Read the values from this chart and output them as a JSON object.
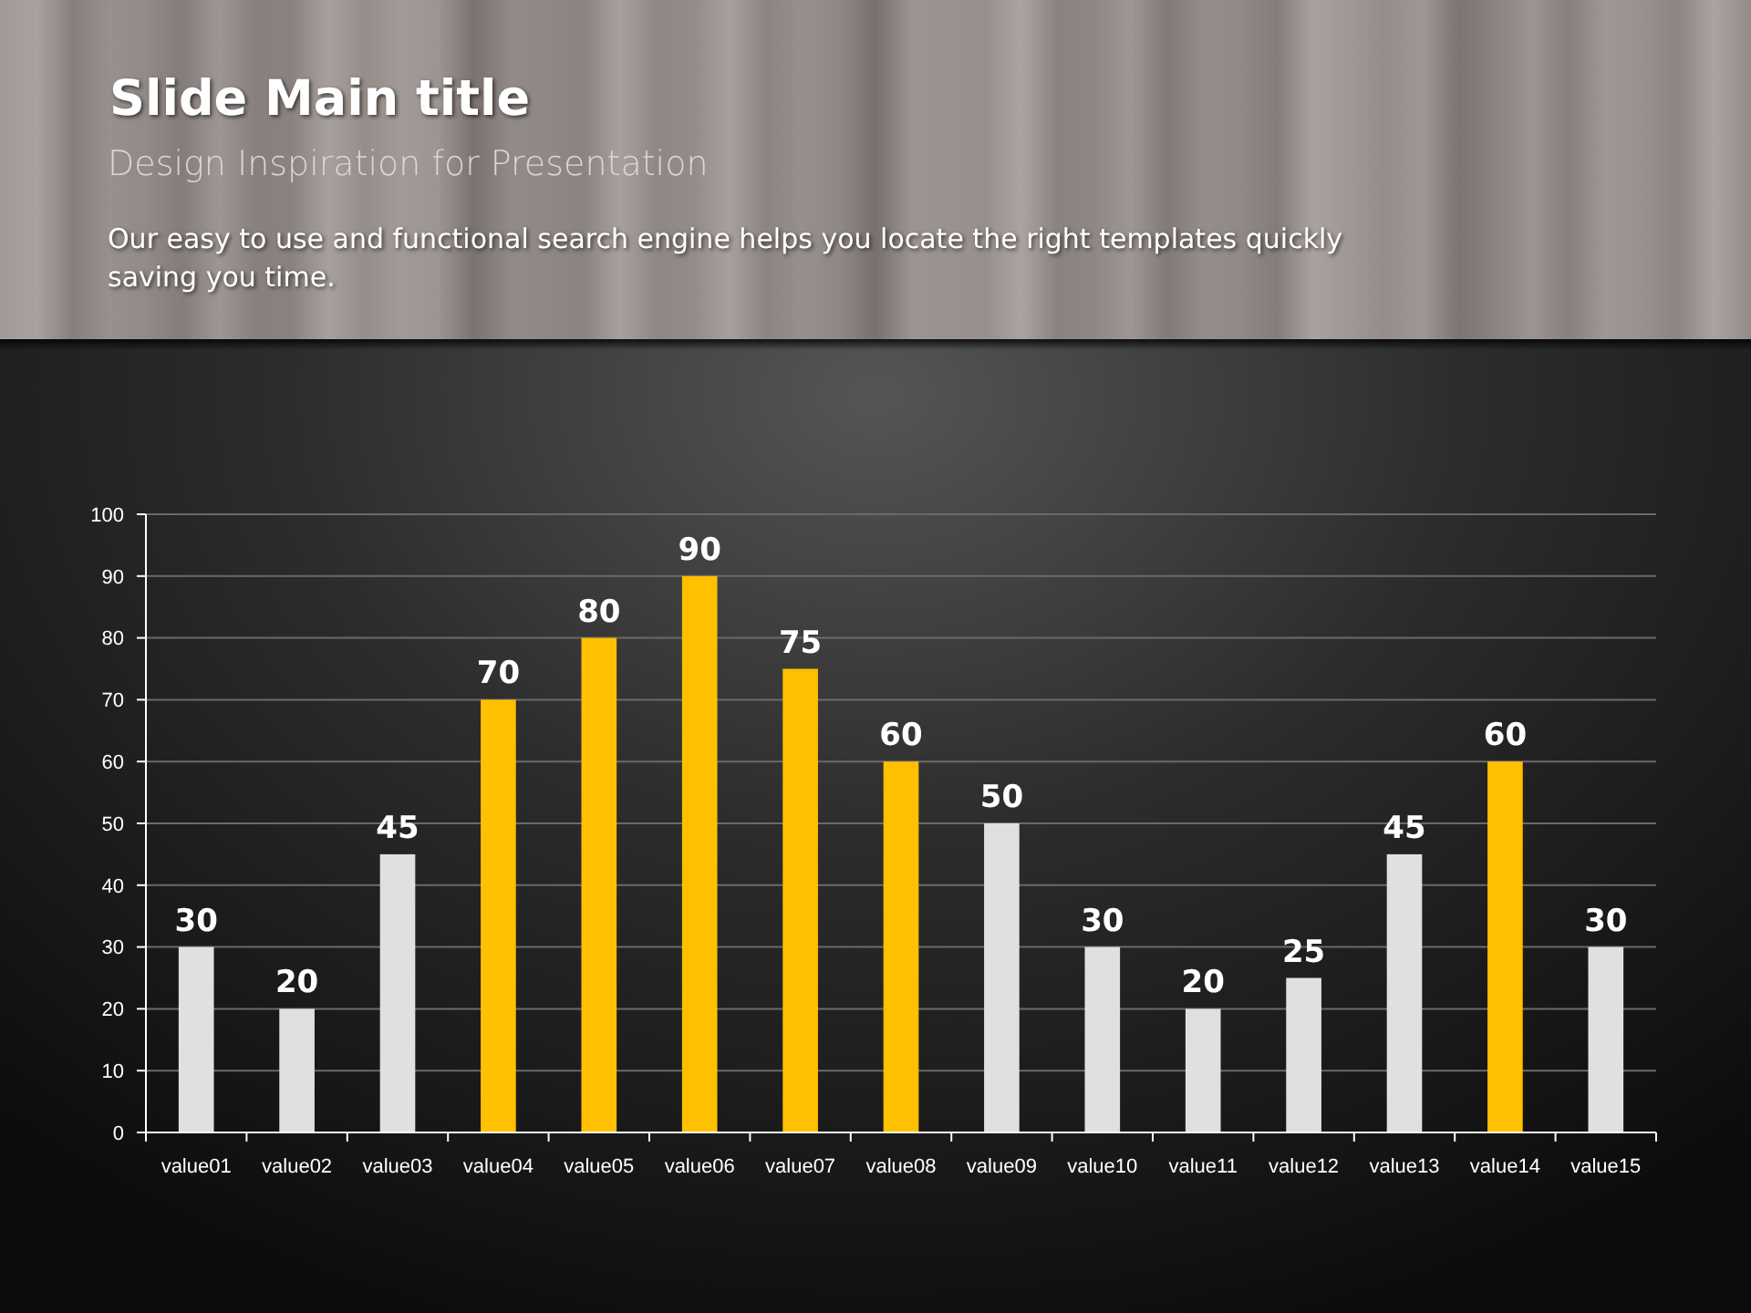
{
  "chart_data": {
    "type": "bar",
    "title": "Slide Main title",
    "subtitle": "Design Inspiration for Presentation",
    "annotations": [
      "Our easy to use and functional search engine helps you locate the right templates quickly saving you time."
    ],
    "categories": [
      "value01",
      "value02",
      "value03",
      "value04",
      "value05",
      "value06",
      "value07",
      "value08",
      "value09",
      "value10",
      "value11",
      "value12",
      "value13",
      "value14",
      "value15"
    ],
    "values": [
      30,
      20,
      45,
      70,
      80,
      90,
      75,
      60,
      50,
      30,
      20,
      25,
      45,
      60,
      30
    ],
    "colors": [
      "#e0e0e0",
      "#e0e0e0",
      "#e0e0e0",
      "#ffc000",
      "#ffc000",
      "#ffc000",
      "#ffc000",
      "#ffc000",
      "#e0e0e0",
      "#e0e0e0",
      "#e0e0e0",
      "#e0e0e0",
      "#e0e0e0",
      "#ffc000",
      "#e0e0e0"
    ],
    "ylim": [
      0,
      100
    ],
    "yticks": [
      0,
      10,
      20,
      30,
      40,
      50,
      60,
      70,
      80,
      90,
      100
    ],
    "grid": "y",
    "data_labels": true
  }
}
